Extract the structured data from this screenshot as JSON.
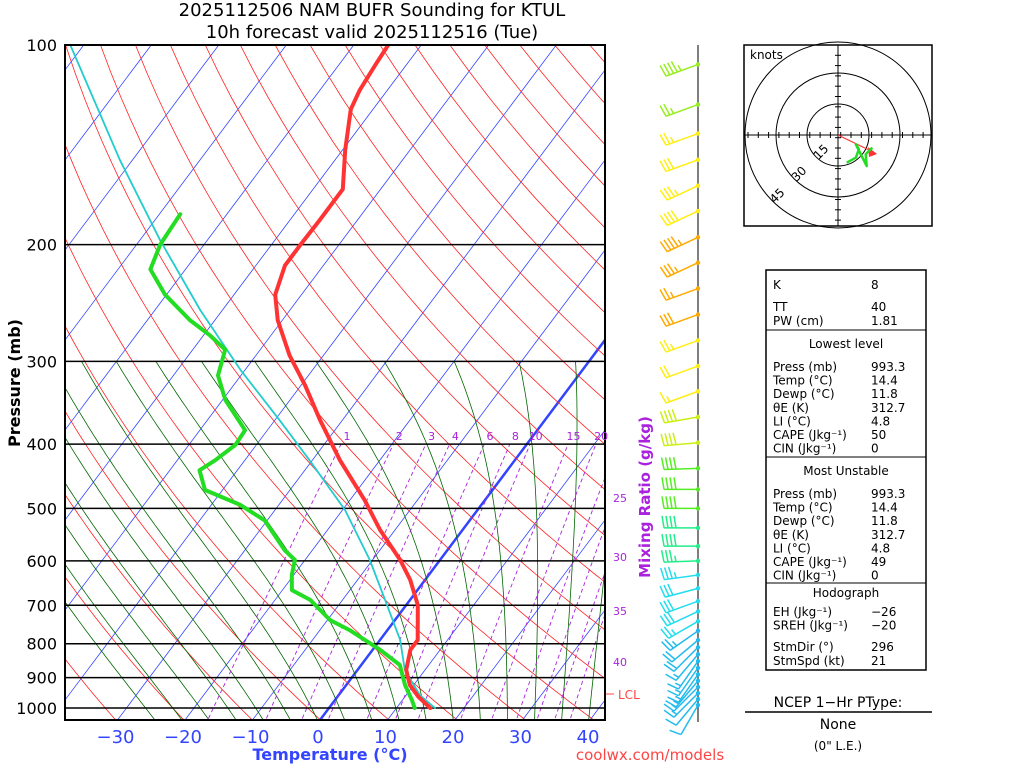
{
  "title": {
    "line1": "2025112506 NAM BUFR Sounding for KTUL",
    "line2": "10h forecast valid 2025112516 (Tue)"
  },
  "credit": "coolwx.com/models",
  "colors": {
    "temperature": "#ff3333",
    "dewpoint": "#22dd22",
    "parcel": "#22cccc",
    "isotherm": "#3344ff",
    "dry_adiabat": "#ff2222",
    "moist_adiabat": "#006600",
    "mixing_ratio": "#aa22dd"
  },
  "chart_data": {
    "type": "line",
    "subtype": "skew-t log-p",
    "title": "2025112506 NAM BUFR Sounding for KTUL",
    "xlabel": "Temperature (°C)",
    "ylabel": "Pressure (mb)",
    "y2label": "Mixing Ratio (g/kg)",
    "xlim": [
      -40,
      42
    ],
    "ylim": [
      1050,
      100
    ],
    "x_ticks": [
      "−30",
      "−20",
      "−10",
      "0",
      "10",
      "20",
      "30",
      "40"
    ],
    "x_tick_values": [
      -30,
      -20,
      -10,
      0,
      10,
      20,
      30,
      40
    ],
    "y_ticks": [
      "100",
      "200",
      "300",
      "400",
      "500",
      "600",
      "700",
      "800",
      "900",
      "1000"
    ],
    "y_tick_values": [
      100,
      200,
      300,
      400,
      500,
      600,
      700,
      800,
      900,
      1000
    ],
    "mixing_ratio_labels": [
      "1",
      "2",
      "3",
      "4",
      "6",
      "8",
      "10",
      "15",
      "20"
    ],
    "mixing_ratio_values": [
      1,
      2,
      3,
      4,
      6,
      8,
      10,
      15,
      20
    ],
    "mixing_ratio_labels_right": [
      "25",
      "30",
      "35",
      "40"
    ],
    "mixing_ratio_values_right": [
      25,
      30,
      35,
      40
    ],
    "lcl_label": "LCL",
    "lcl_pressure": 960,
    "series": [
      {
        "name": "Temperature",
        "points": [
          [
            1000,
            15.0
          ],
          [
            962,
            12.0
          ],
          [
            923,
            9.4
          ],
          [
            876,
            7.2
          ],
          [
            817,
            5.6
          ],
          [
            790,
            5.6
          ],
          [
            699,
            1.7
          ],
          [
            641,
            -2.2
          ],
          [
            598,
            -5.9
          ],
          [
            539,
            -12.2
          ],
          [
            486,
            -17.8
          ],
          [
            423,
            -25.9
          ],
          [
            368,
            -33.3
          ],
          [
            326,
            -39.4
          ],
          [
            294,
            -45.0
          ],
          [
            260,
            -50.7
          ],
          [
            238,
            -53.9
          ],
          [
            215,
            -55.7
          ],
          [
            200,
            -55.7
          ],
          [
            184,
            -55.6
          ],
          [
            165,
            -55.6
          ],
          [
            144,
            -59.6
          ],
          [
            125,
            -63.3
          ],
          [
            117,
            -64.1
          ],
          [
            107,
            -64.6
          ],
          [
            100,
            -64.9
          ]
        ]
      },
      {
        "name": "Dewpoint",
        "points": [
          [
            1000,
            12.7
          ],
          [
            973,
            11.4
          ],
          [
            923,
            8.7
          ],
          [
            861,
            5.7
          ],
          [
            817,
            1.1
          ],
          [
            763,
            -5.6
          ],
          [
            737,
            -9.6
          ],
          [
            687,
            -14.8
          ],
          [
            664,
            -18.6
          ],
          [
            630,
            -20.3
          ],
          [
            598,
            -21.5
          ],
          [
            578,
            -24.1
          ],
          [
            521,
            -30.4
          ],
          [
            494,
            -35.7
          ],
          [
            469,
            -42.6
          ],
          [
            438,
            -45.6
          ],
          [
            423,
            -44.4
          ],
          [
            401,
            -43.1
          ],
          [
            381,
            -43.3
          ],
          [
            343,
            -49.6
          ],
          [
            315,
            -53.4
          ],
          [
            288,
            -55.2
          ],
          [
            274,
            -59.1
          ],
          [
            260,
            -63.7
          ],
          [
            238,
            -70.2
          ],
          [
            218,
            -75.2
          ],
          [
            200,
            -76.5
          ],
          [
            180,
            -76.9
          ]
        ]
      },
      {
        "name": "Parcel",
        "points": [
          [
            1000,
            15.7
          ],
          [
            956,
            12.0
          ],
          [
            876,
            7.0
          ],
          [
            790,
            3.0
          ],
          [
            687,
            -3.7
          ],
          [
            598,
            -10.4
          ],
          [
            503,
            -19.6
          ],
          [
            423,
            -30.4
          ],
          [
            368,
            -39.3
          ],
          [
            309,
            -50.7
          ],
          [
            251,
            -63.3
          ],
          [
            197,
            -77.0
          ],
          [
            149,
            -91.9
          ],
          [
            100,
            -112.0
          ]
        ]
      }
    ],
    "wind_barbs": [
      {
        "p": 107,
        "dir": 250,
        "spd": 45
      },
      {
        "p": 123,
        "dir": 250,
        "spd": 25
      },
      {
        "p": 136,
        "dir": 250,
        "spd": 25
      },
      {
        "p": 149,
        "dir": 250,
        "spd": 30
      },
      {
        "p": 163,
        "dir": 245,
        "spd": 35
      },
      {
        "p": 178,
        "dir": 245,
        "spd": 40
      },
      {
        "p": 195,
        "dir": 245,
        "spd": 45
      },
      {
        "p": 213,
        "dir": 245,
        "spd": 35
      },
      {
        "p": 233,
        "dir": 250,
        "spd": 25
      },
      {
        "p": 255,
        "dir": 250,
        "spd": 30
      },
      {
        "p": 279,
        "dir": 250,
        "spd": 25
      },
      {
        "p": 305,
        "dir": 250,
        "spd": 20
      },
      {
        "p": 333,
        "dir": 250,
        "spd": 15
      },
      {
        "p": 364,
        "dir": 260,
        "spd": 40
      },
      {
        "p": 398,
        "dir": 265,
        "spd": 40
      },
      {
        "p": 435,
        "dir": 268,
        "spd": 40
      },
      {
        "p": 468,
        "dir": 270,
        "spd": 40
      },
      {
        "p": 500,
        "dir": 270,
        "spd": 40
      },
      {
        "p": 535,
        "dir": 270,
        "spd": 40
      },
      {
        "p": 570,
        "dir": 270,
        "spd": 40
      },
      {
        "p": 600,
        "dir": 268,
        "spd": 35
      },
      {
        "p": 630,
        "dir": 262,
        "spd": 35
      },
      {
        "p": 660,
        "dir": 255,
        "spd": 30
      },
      {
        "p": 690,
        "dir": 250,
        "spd": 30
      },
      {
        "p": 715,
        "dir": 245,
        "spd": 30
      },
      {
        "p": 740,
        "dir": 240,
        "spd": 25
      },
      {
        "p": 765,
        "dir": 235,
        "spd": 25
      },
      {
        "p": 790,
        "dir": 230,
        "spd": 20
      },
      {
        "p": 810,
        "dir": 225,
        "spd": 20
      },
      {
        "p": 830,
        "dir": 220,
        "spd": 15
      },
      {
        "p": 850,
        "dir": 215,
        "spd": 15
      },
      {
        "p": 870,
        "dir": 215,
        "spd": 15
      },
      {
        "p": 890,
        "dir": 215,
        "spd": 15
      },
      {
        "p": 910,
        "dir": 220,
        "spd": 15
      },
      {
        "p": 930,
        "dir": 225,
        "spd": 15
      },
      {
        "p": 950,
        "dir": 225,
        "spd": 15
      },
      {
        "p": 970,
        "dir": 220,
        "spd": 10
      },
      {
        "p": 990,
        "dir": 210,
        "spd": 10
      }
    ]
  },
  "hodograph": {
    "units_label": "knots",
    "ring_labels": [
      "15",
      "30",
      "45"
    ],
    "ring_values": [
      15,
      30,
      45
    ],
    "trace_uv_kt": [
      [
        4.2,
        -13.4
      ],
      [
        8.6,
        -11.0
      ],
      [
        10.1,
        -6.9
      ],
      [
        8.6,
        -4.5
      ],
      [
        11.0,
        -9.3
      ],
      [
        13.9,
        -15.0
      ],
      [
        13.4,
        -9.3
      ],
      [
        16.6,
        -6.1
      ]
    ],
    "storm_motion_uv_kt": [
      18.9,
      -9.2
    ]
  },
  "indices": {
    "rows": [
      {
        "label": "K",
        "value": "8"
      },
      {
        "label": "TT",
        "value": "40"
      },
      {
        "label": "PW (cm)",
        "value": "1.81"
      }
    ]
  },
  "lowest_level": {
    "heading": "Lowest level",
    "rows": [
      {
        "label": "Press (mb)",
        "value": "993.3"
      },
      {
        "label": "Temp (°C)",
        "value": "14.4"
      },
      {
        "label": "Dewp (°C)",
        "value": "11.8"
      },
      {
        "label": "θE (K)",
        "value": "312.7"
      },
      {
        "label": "LI (°C)",
        "value": "4.8"
      },
      {
        "label": "CAPE (Jkg⁻¹)",
        "value": "50"
      },
      {
        "label": "CIN (Jkg⁻¹)",
        "value": "0"
      }
    ]
  },
  "most_unstable": {
    "heading": "Most Unstable",
    "rows": [
      {
        "label": "Press (mb)",
        "value": "993.3"
      },
      {
        "label": "Temp (°C)",
        "value": "14.4"
      },
      {
        "label": "Dewp (°C)",
        "value": "11.8"
      },
      {
        "label": "θE (K)",
        "value": "312.7"
      },
      {
        "label": "LI (°C)",
        "value": "4.8"
      },
      {
        "label": "CAPE (Jkg⁻¹)",
        "value": "49"
      },
      {
        "label": "CIN (Jkg⁻¹)",
        "value": "0"
      }
    ]
  },
  "hodograph_stats": {
    "heading": "Hodograph",
    "rows": [
      {
        "label": "EH (Jkg⁻¹)",
        "value": "−26"
      },
      {
        "label": "SREH (Jkg⁻¹)",
        "value": "−20"
      },
      {
        "label": "StmDir (°)",
        "value": "296"
      },
      {
        "label": "StmSpd (kt)",
        "value": "21"
      }
    ]
  },
  "ptype": {
    "heading": "NCEP 1−Hr PType:",
    "value": "None",
    "liquid_equiv": "(0\" L.E.)"
  }
}
